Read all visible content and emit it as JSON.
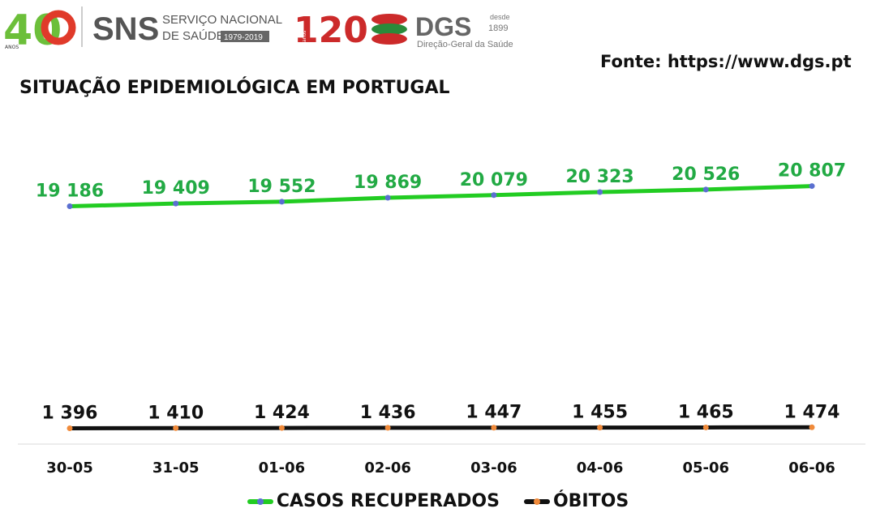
{
  "header": {
    "logo_sns_number": "40",
    "logo_sns_anos": "ANOS",
    "logo_sns_name": "SNS",
    "logo_sns_line1": "SERVIÇO NACIONAL",
    "logo_sns_line2": "DE SAÚDE",
    "logo_sns_years": "1979-2019",
    "logo_dgs_number": "120",
    "logo_dgs_anos": "anos",
    "logo_dgs_name": "DGS",
    "logo_dgs_since": "desde",
    "logo_dgs_year": "1899",
    "logo_dgs_full": "Direção-Geral da Saúde",
    "source": "Fonte: https://www.dgs.pt"
  },
  "colors": {
    "recovered": "#22cc22",
    "recovered_label": "#22aa44",
    "deaths": "#111111",
    "marker_blue": "#5a6fd0",
    "marker_orange": "#f08a3a"
  },
  "chart_data": {
    "type": "line",
    "title": "SITUAÇÃO EPIDEMIOLÓGICA EM PORTUGAL",
    "categories": [
      "30-05",
      "31-05",
      "01-06",
      "02-06",
      "03-06",
      "04-06",
      "05-06",
      "06-06"
    ],
    "series": [
      {
        "name": "CASOS RECUPERADOS",
        "values": [
          19186,
          19409,
          19552,
          19869,
          20079,
          20323,
          20526,
          20807
        ],
        "labels": [
          "19 186",
          "19 409",
          "19 552",
          "19 869",
          "20 079",
          "20 323",
          "20 526",
          "20 807"
        ]
      },
      {
        "name": "ÓBITOS",
        "values": [
          1396,
          1410,
          1424,
          1436,
          1447,
          1455,
          1465,
          1474
        ],
        "labels": [
          "1 396",
          "1 410",
          "1 424",
          "1 436",
          "1 447",
          "1 455",
          "1 465",
          "1 474"
        ]
      }
    ],
    "grid": false,
    "legend_position": "bottom"
  }
}
